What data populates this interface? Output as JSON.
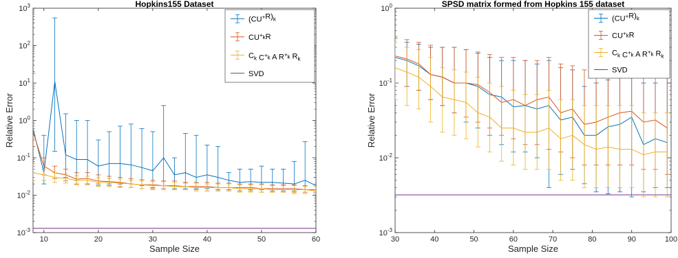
{
  "colors": {
    "blue": "#0072BD",
    "orange": "#D95319",
    "yellow": "#EDB120",
    "purple": "#7E2F8E",
    "axis": "#262626",
    "grid": "#ffffff"
  },
  "chart_data": [
    {
      "type": "line",
      "title": "Hopkins155 Dataset",
      "xlabel": "Sample Size",
      "ylabel": "Relative Error",
      "xlim": [
        8,
        60
      ],
      "ylim": [
        0.001,
        1000
      ],
      "yscale": "log",
      "xticks": [
        "10",
        "20",
        "30",
        "40",
        "50",
        "60"
      ],
      "yticks": [
        "10-3",
        "10-2",
        "10-1",
        "100",
        "101",
        "102",
        "103"
      ],
      "legend_position": "top-right",
      "legend": [
        "(CU+R)k",
        "CU+kR",
        "Ck C+k A R+k Rk",
        "SVD"
      ],
      "x": [
        8,
        10,
        12,
        14,
        16,
        18,
        20,
        22,
        24,
        26,
        28,
        30,
        32,
        34,
        36,
        38,
        40,
        42,
        44,
        46,
        48,
        50,
        52,
        54,
        56,
        58,
        60
      ],
      "series": [
        {
          "name": "(CU+R)k",
          "color": "blue",
          "values": [
            0.6,
            0.04,
            11,
            0.12,
            0.09,
            0.09,
            0.06,
            0.07,
            0.07,
            0.065,
            0.055,
            0.045,
            0.1,
            0.035,
            0.04,
            0.03,
            0.035,
            0.03,
            0.025,
            0.022,
            0.023,
            0.022,
            0.022,
            0.021,
            0.02,
            0.025,
            0.018
          ],
          "lower": [
            0.4,
            0.02,
            0.15,
            0.03,
            0.025,
            0.02,
            0.02,
            0.02,
            0.02,
            0.02,
            0.018,
            0.016,
            0.018,
            0.015,
            0.015,
            0.015,
            0.015,
            0.014,
            0.014,
            0.013,
            0.014,
            0.014,
            0.013,
            0.013,
            0.013,
            0.014,
            0.012
          ],
          "upper": [
            1.0,
            0.4,
            550,
            1.5,
            1.0,
            1.0,
            0.3,
            0.5,
            0.7,
            0.8,
            0.6,
            0.5,
            2.5,
            0.1,
            0.45,
            0.4,
            0.22,
            0.2,
            0.04,
            0.05,
            0.05,
            0.06,
            0.05,
            0.05,
            0.08,
            0.27,
            0.03
          ]
        },
        {
          "name": "CU+kR",
          "color": "orange",
          "values": [
            0.5,
            0.06,
            0.04,
            0.035,
            0.027,
            0.028,
            0.024,
            0.023,
            0.022,
            0.02,
            0.019,
            0.019,
            0.018,
            0.018,
            0.017,
            0.017,
            0.017,
            0.016,
            0.016,
            0.016,
            0.016,
            0.015,
            0.015,
            0.015,
            0.015,
            0.014,
            0.014
          ],
          "lower": [
            0.2,
            0.035,
            0.028,
            0.024,
            0.02,
            0.02,
            0.018,
            0.018,
            0.017,
            0.016,
            0.015,
            0.015,
            0.015,
            0.014,
            0.014,
            0.014,
            0.013,
            0.013,
            0.013,
            0.013,
            0.013,
            0.012,
            0.012,
            0.012,
            0.012,
            0.012,
            0.012
          ],
          "upper": [
            18,
            0.1,
            0.06,
            0.05,
            0.04,
            0.04,
            0.035,
            0.032,
            0.03,
            0.028,
            0.026,
            0.025,
            0.024,
            0.024,
            0.022,
            0.022,
            0.022,
            0.021,
            0.021,
            0.02,
            0.02,
            0.02,
            0.019,
            0.019,
            0.019,
            0.018,
            0.017
          ]
        },
        {
          "name": "Ck C+k A R+k Rk",
          "color": "yellow",
          "values": [
            0.04,
            0.035,
            0.03,
            0.028,
            0.025,
            0.025,
            0.022,
            0.022,
            0.021,
            0.02,
            0.019,
            0.018,
            0.018,
            0.017,
            0.017,
            0.016,
            0.016,
            0.016,
            0.016,
            0.015,
            0.015,
            0.015,
            0.014,
            0.014,
            0.014,
            0.014,
            0.013
          ],
          "lower": [
            0.025,
            0.025,
            0.022,
            0.021,
            0.019,
            0.019,
            0.017,
            0.017,
            0.016,
            0.016,
            0.015,
            0.014,
            0.014,
            0.014,
            0.014,
            0.013,
            0.013,
            0.013,
            0.013,
            0.012,
            0.012,
            0.012,
            0.012,
            0.012,
            0.011,
            0.011,
            0.011
          ],
          "upper": [
            0.07,
            0.05,
            0.04,
            0.037,
            0.033,
            0.032,
            0.029,
            0.028,
            0.027,
            0.025,
            0.024,
            0.023,
            0.023,
            0.022,
            0.021,
            0.021,
            0.02,
            0.02,
            0.02,
            0.019,
            0.019,
            0.019,
            0.018,
            0.018,
            0.018,
            0.017,
            0.017
          ]
        },
        {
          "name": "SVD",
          "color": "purple",
          "constant": 0.0013
        }
      ]
    },
    {
      "type": "line",
      "title": "SPSD matrix formed from Hopkins 155 dataset",
      "xlabel": "Sample Size",
      "ylabel": "Relative Error",
      "xlim": [
        30,
        100
      ],
      "ylim": [
        0.001,
        1
      ],
      "yscale": "log",
      "xticks": [
        "30",
        "40",
        "50",
        "60",
        "70",
        "80",
        "90",
        "100"
      ],
      "yticks": [
        "10-3",
        "10-2",
        "10-1",
        "100"
      ],
      "legend_position": "top-right",
      "legend": [
        "(CU+R)k",
        "CU+kR",
        "Ck C+k A R+k Rk",
        "SVD"
      ],
      "x": [
        30,
        33,
        36,
        39,
        42,
        45,
        48,
        51,
        54,
        57,
        60,
        63,
        66,
        69,
        72,
        75,
        78,
        81,
        84,
        87,
        90,
        93,
        96,
        99
      ],
      "series": [
        {
          "name": "(CU+R)k",
          "color": "blue",
          "values": [
            0.22,
            0.2,
            0.17,
            0.13,
            0.12,
            0.1,
            0.1,
            0.09,
            0.07,
            0.065,
            0.048,
            0.05,
            0.045,
            0.05,
            0.032,
            0.035,
            0.02,
            0.02,
            0.026,
            0.028,
            0.035,
            0.015,
            0.018,
            0.016
          ],
          "lower": [
            0.1,
            0.09,
            0.08,
            0.06,
            0.05,
            0.04,
            0.03,
            0.025,
            0.02,
            0.015,
            0.012,
            0.012,
            0.01,
            0.004,
            0.006,
            0.007,
            0.0045,
            0.0035,
            0.0033,
            0.0035,
            0.003,
            0.0035,
            0.004,
            0.004
          ],
          "upper": [
            0.4,
            0.35,
            0.33,
            0.3,
            0.3,
            0.3,
            0.28,
            0.25,
            0.22,
            0.2,
            0.2,
            0.2,
            0.18,
            0.2,
            0.16,
            0.15,
            0.09,
            0.1,
            0.11,
            0.12,
            0.15,
            0.1,
            0.1,
            0.12
          ]
        },
        {
          "name": "CU+kR",
          "color": "orange",
          "values": [
            0.23,
            0.21,
            0.18,
            0.13,
            0.12,
            0.1,
            0.1,
            0.095,
            0.075,
            0.055,
            0.06,
            0.05,
            0.06,
            0.065,
            0.04,
            0.045,
            0.028,
            0.03,
            0.035,
            0.04,
            0.042,
            0.03,
            0.032,
            0.025
          ],
          "lower": [
            0.1,
            0.09,
            0.08,
            0.06,
            0.05,
            0.04,
            0.035,
            0.03,
            0.025,
            0.02,
            0.018,
            0.015,
            0.015,
            0.013,
            0.012,
            0.01,
            0.008,
            0.008,
            0.008,
            0.008,
            0.008,
            0.007,
            0.007,
            0.006
          ],
          "upper": [
            0.42,
            0.38,
            0.35,
            0.32,
            0.3,
            0.3,
            0.28,
            0.26,
            0.24,
            0.22,
            0.22,
            0.2,
            0.2,
            0.22,
            0.18,
            0.17,
            0.15,
            0.14,
            0.14,
            0.14,
            0.14,
            0.14,
            0.13,
            0.12
          ]
        },
        {
          "name": "Ck C+k A R+k Rk",
          "color": "yellow",
          "values": [
            0.16,
            0.14,
            0.12,
            0.09,
            0.065,
            0.06,
            0.055,
            0.04,
            0.035,
            0.025,
            0.025,
            0.022,
            0.022,
            0.025,
            0.018,
            0.02,
            0.015,
            0.013,
            0.014,
            0.013,
            0.013,
            0.011,
            0.012,
            0.012
          ],
          "lower": [
            0.06,
            0.05,
            0.045,
            0.03,
            0.022,
            0.02,
            0.018,
            0.014,
            0.012,
            0.009,
            0.008,
            0.007,
            0.007,
            0.007,
            0.005,
            0.005,
            0.004,
            0.004,
            0.004,
            0.004,
            0.004,
            0.003,
            0.003,
            0.003
          ],
          "upper": [
            0.35,
            0.3,
            0.28,
            0.22,
            0.16,
            0.15,
            0.14,
            0.12,
            0.1,
            0.09,
            0.08,
            0.07,
            0.07,
            0.08,
            0.06,
            0.06,
            0.05,
            0.05,
            0.05,
            0.05,
            0.05,
            0.04,
            0.04,
            0.04
          ]
        },
        {
          "name": "SVD",
          "color": "purple",
          "constant": 0.0032
        }
      ]
    }
  ]
}
